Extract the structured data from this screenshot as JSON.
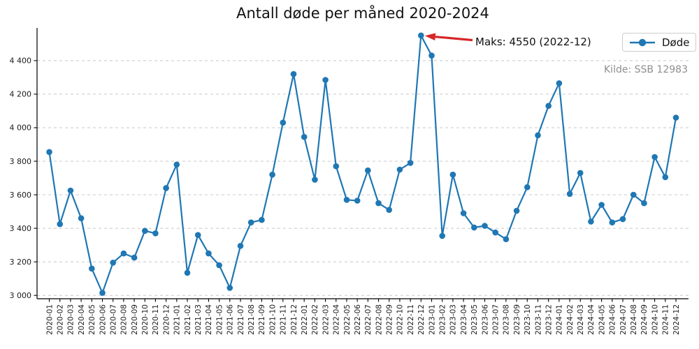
{
  "colors": {
    "line": "#1f77b4",
    "arrow": "#d62728",
    "grid": "#c8c8c8",
    "axis": "#000000",
    "tick_text": "#1a1a1a",
    "source_text": "#8f8f8f",
    "legend_border": "#cccccc"
  },
  "chart_data": {
    "type": "line",
    "title": "Antall døde per måned 2020-2024",
    "source": "Kilde: SSB 12983",
    "legend_position": "upper-right",
    "grid": "horizontal-dashed",
    "ylim": [
      2980,
      4595
    ],
    "yticks": [
      3000,
      3200,
      3400,
      3600,
      3800,
      4000,
      4200,
      4400
    ],
    "ytick_labels": [
      "3 000",
      "3 200",
      "3 400",
      "3 600",
      "3 800",
      "4 000",
      "4 200",
      "4 400"
    ],
    "x": [
      "2020-01",
      "2020-02",
      "2020-03",
      "2020-04",
      "2020-05",
      "2020-06",
      "2020-07",
      "2020-08",
      "2020-09",
      "2020-10",
      "2020-11",
      "2020-12",
      "2021-01",
      "2021-02",
      "2021-03",
      "2021-04",
      "2021-05",
      "2021-06",
      "2021-07",
      "2021-08",
      "2021-09",
      "2021-10",
      "2021-11",
      "2021-12",
      "2022-01",
      "2022-02",
      "2022-03",
      "2022-04",
      "2022-05",
      "2022-06",
      "2022-07",
      "2022-08",
      "2022-09",
      "2022-10",
      "2022-11",
      "2022-12",
      "2023-01",
      "2023-02",
      "2023-03",
      "2023-04",
      "2023-05",
      "2023-06",
      "2023-07",
      "2023-08",
      "2023-09",
      "2023-10",
      "2023-11",
      "2023-12",
      "2024-01",
      "2024-02",
      "2024-03",
      "2024-04",
      "2024-05",
      "2024-06",
      "2024-07",
      "2024-08",
      "2024-09",
      "2024-10",
      "2024-11",
      "2024-12"
    ],
    "series": [
      {
        "name": "Døde",
        "color": "#1f77b4",
        "values": [
          3855,
          3425,
          3625,
          3460,
          3160,
          3015,
          3195,
          3250,
          3225,
          3385,
          3370,
          3640,
          3780,
          3135,
          3360,
          3250,
          3180,
          3045,
          3295,
          3435,
          3450,
          3720,
          4030,
          4320,
          3945,
          3690,
          4285,
          3770,
          3570,
          3565,
          3745,
          3550,
          3510,
          3750,
          3790,
          4550,
          4430,
          3355,
          3720,
          3490,
          3405,
          3415,
          3375,
          3335,
          3505,
          3645,
          3955,
          4130,
          4265,
          3605,
          3730,
          3440,
          3540,
          3435,
          3455,
          3600,
          3550,
          3825,
          3705,
          4060
        ]
      }
    ],
    "annotation": {
      "text": "Maks: 4550 (2022-12)",
      "x": "2022-12",
      "y": 4550
    }
  }
}
